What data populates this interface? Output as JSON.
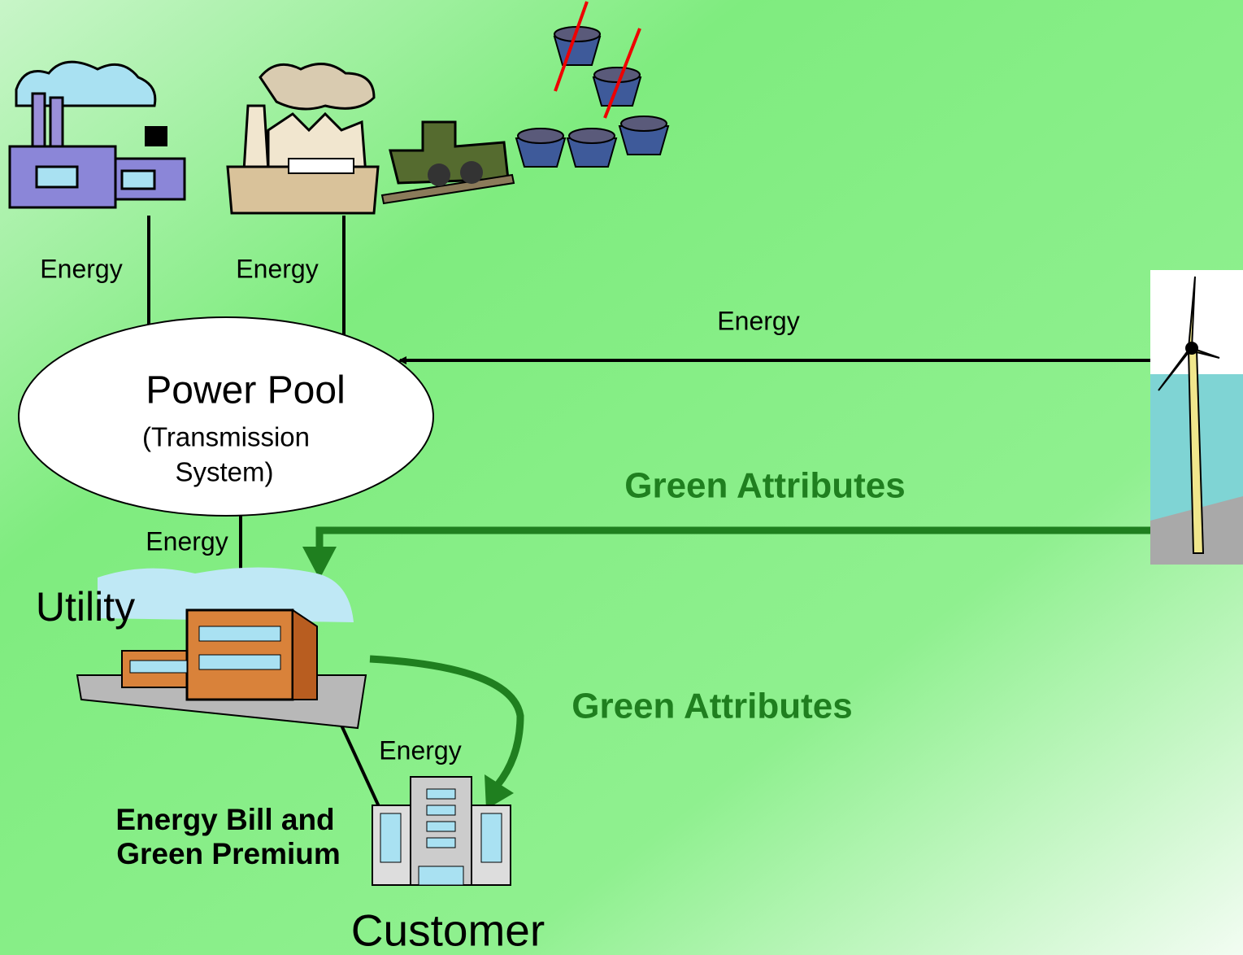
{
  "nodes": [
    {
      "label": "Power Pool",
      "sublabel": [
        "(Transmission",
        "System)"
      ]
    },
    {
      "label": "Utility"
    },
    {
      "label": "Customer"
    }
  ],
  "edges": [
    {
      "label": "Energy"
    },
    {
      "label": "Energy"
    },
    {
      "label": "Energy"
    },
    {
      "label": "Green Attributes"
    },
    {
      "label": "Energy"
    },
    {
      "label": "Green Attributes"
    },
    {
      "label": "Energy"
    }
  ],
  "note": [
    "Energy Bill and",
    "Green Premium"
  ]
}
